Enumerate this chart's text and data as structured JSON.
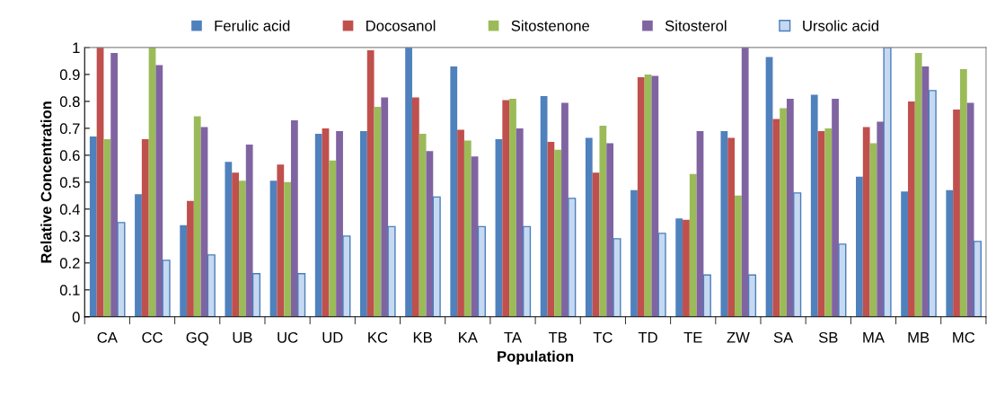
{
  "chart_data": {
    "type": "bar",
    "xlabel": "Population",
    "ylabel": "Relative Concentration",
    "categories": [
      "CA",
      "CC",
      "GQ",
      "UB",
      "UC",
      "UD",
      "KC",
      "KB",
      "KA",
      "TA",
      "TB",
      "TC",
      "TD",
      "TE",
      "ZW",
      "SA",
      "SB",
      "MA",
      "MB",
      "MC"
    ],
    "series": [
      {
        "name": "Ferulic acid",
        "color": "#4f81bd",
        "values": [
          0.67,
          0.455,
          0.34,
          0.575,
          0.505,
          0.68,
          0.69,
          1.0,
          0.93,
          0.66,
          0.82,
          0.665,
          0.47,
          0.365,
          0.69,
          0.965,
          0.825,
          0.52,
          0.465,
          0.47
        ]
      },
      {
        "name": "Docosanol",
        "color": "#c0504d",
        "values": [
          1.0,
          0.66,
          0.43,
          0.535,
          0.565,
          0.7,
          0.99,
          0.815,
          0.695,
          0.805,
          0.65,
          0.535,
          0.89,
          0.36,
          0.665,
          0.735,
          0.69,
          0.705,
          0.8,
          0.77
        ]
      },
      {
        "name": "Sitostenone",
        "color": "#9bbb59",
        "values": [
          0.66,
          1.0,
          0.745,
          0.505,
          0.5,
          0.58,
          0.78,
          0.68,
          0.655,
          0.81,
          0.62,
          0.71,
          0.9,
          0.53,
          0.45,
          0.775,
          0.7,
          0.645,
          0.98,
          0.92
        ]
      },
      {
        "name": "Sitosterol",
        "color": "#8064a2",
        "values": [
          0.98,
          0.935,
          0.705,
          0.64,
          0.73,
          0.69,
          0.815,
          0.615,
          0.595,
          0.7,
          0.795,
          0.645,
          0.895,
          0.69,
          1.0,
          0.81,
          0.81,
          0.725,
          0.93,
          0.795
        ]
      },
      {
        "name": "Ursolic acid",
        "color": "#c6d9f1",
        "values": [
          0.35,
          0.21,
          0.23,
          0.16,
          0.16,
          0.3,
          0.335,
          0.445,
          0.335,
          0.335,
          0.44,
          0.29,
          0.31,
          0.155,
          0.155,
          0.46,
          0.27,
          1.0,
          0.84,
          0.28
        ]
      }
    ],
    "ylim": [
      0,
      1
    ],
    "yticks": [
      0,
      0.1,
      0.2,
      0.3,
      0.4,
      0.5,
      0.6,
      0.7,
      0.8,
      0.9,
      1
    ],
    "grid": false,
    "legend": "top"
  }
}
